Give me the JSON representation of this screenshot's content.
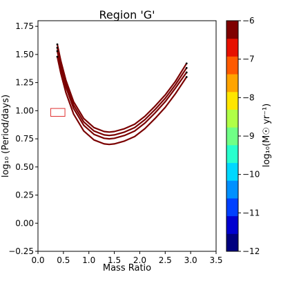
{
  "chart_data": {
    "type": "line",
    "title": "Region 'G'",
    "xlabel": "Mass Ratio",
    "ylabel": "log₁₀ (Period/days)",
    "xlim": [
      0.0,
      3.5
    ],
    "ylim": [
      -0.25,
      1.8
    ],
    "x_ticks": [
      "0.0",
      "0.5",
      "1.0",
      "1.5",
      "2.0",
      "2.5",
      "3.0",
      "3.5"
    ],
    "x_tick_values": [
      0.0,
      0.5,
      1.0,
      1.5,
      2.0,
      2.5,
      3.0,
      3.5
    ],
    "y_ticks": [
      "−0.25",
      "0.00",
      "0.25",
      "0.50",
      "0.75",
      "1.00",
      "1.25",
      "1.50",
      "1.75"
    ],
    "y_tick_values": [
      -0.25,
      0.0,
      0.25,
      0.5,
      0.75,
      1.0,
      1.25,
      1.5,
      1.75
    ],
    "grid": false,
    "series": [
      {
        "x": [
          0.38,
          0.45,
          0.55,
          0.7,
          0.9,
          1.1,
          1.3,
          1.4,
          1.5,
          1.7,
          1.9,
          2.1,
          2.3,
          2.5,
          2.7,
          2.92
        ],
        "y": [
          1.59,
          1.44,
          1.27,
          1.08,
          0.93,
          0.85,
          0.815,
          0.81,
          0.815,
          0.84,
          0.88,
          0.95,
          1.04,
          1.14,
          1.26,
          1.42
        ],
        "color": "#7a0000"
      },
      {
        "x": [
          0.38,
          0.45,
          0.55,
          0.7,
          0.9,
          1.1,
          1.3,
          1.4,
          1.5,
          1.7,
          1.9,
          2.1,
          2.3,
          2.5,
          2.7,
          2.92
        ],
        "y": [
          1.56,
          1.41,
          1.24,
          1.05,
          0.9,
          0.82,
          0.785,
          0.78,
          0.785,
          0.81,
          0.85,
          0.92,
          1.01,
          1.11,
          1.23,
          1.38
        ],
        "color": "#7a0000"
      },
      {
        "x": [
          0.38,
          0.45,
          0.55,
          0.7,
          0.9,
          1.1,
          1.3,
          1.4,
          1.5,
          1.7,
          1.9,
          2.1,
          2.3,
          2.5,
          2.7,
          2.92
        ],
        "y": [
          1.53,
          1.38,
          1.21,
          1.02,
          0.87,
          0.79,
          0.755,
          0.75,
          0.755,
          0.78,
          0.82,
          0.89,
          0.98,
          1.08,
          1.2,
          1.34
        ],
        "color": "#7a0000"
      },
      {
        "x": [
          0.38,
          0.45,
          0.55,
          0.7,
          0.9,
          1.1,
          1.3,
          1.4,
          1.5,
          1.7,
          1.9,
          2.1,
          2.3,
          2.5,
          2.7,
          2.92
        ],
        "y": [
          1.48,
          1.33,
          1.16,
          0.97,
          0.82,
          0.74,
          0.705,
          0.7,
          0.705,
          0.73,
          0.77,
          0.84,
          0.93,
          1.03,
          1.15,
          1.3
        ],
        "color": "#7a0000"
      }
    ],
    "box": {
      "x0": 0.25,
      "x1": 0.53,
      "y0": 0.95,
      "y1": 1.02,
      "color": "#e03030"
    },
    "colorbar": {
      "label": "log₁₀(M☉ yr⁻¹)",
      "min": -12,
      "max": -6,
      "ticks": [
        "−6",
        "−7",
        "−8",
        "−9",
        "−10",
        "−11",
        "−12"
      ],
      "tick_values": [
        -6,
        -7,
        -8,
        -9,
        -10,
        -11,
        -12
      ],
      "colors": [
        "#00007f",
        "#0000d0",
        "#0040ff",
        "#0090ff",
        "#00d8ff",
        "#28ffce",
        "#70ff86",
        "#b0ff47",
        "#ffe600",
        "#ffa400",
        "#ff5a00",
        "#e61000",
        "#7f0000"
      ]
    }
  }
}
